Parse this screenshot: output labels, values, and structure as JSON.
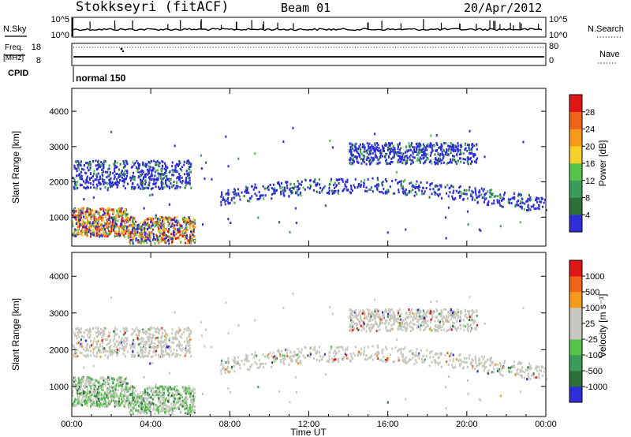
{
  "header": {
    "station": "Stokkseyri (fitACF)",
    "beam": "Beam 01",
    "date": "20/Apr/2012"
  },
  "side_labels": {
    "nsky": "N.Sky",
    "nsearch": "N.Search",
    "freq": "Freq.",
    "mhz": "[MHz]",
    "nave": "Nave",
    "cpid": "CPID",
    "mode": "normal 150"
  },
  "colors": {
    "power": [
      "#2e2ed8",
      "#2e6f3a",
      "#3b9b5a",
      "#57c24a",
      "#f5d12a",
      "#f59b1a",
      "#f06418",
      "#e01616"
    ],
    "velocity": [
      "#e01616",
      "#f06418",
      "#f59b1a",
      "#c8c8c0",
      "#c8c8c0",
      "#57c24a",
      "#3b9b5a",
      "#2e6f3a",
      "#2e2ed8"
    ]
  },
  "chart_data": [
    {
      "type": "line",
      "name": "N.Sky / N.Search strip",
      "yticks_left": [
        "10^5",
        "10^0"
      ],
      "yticks_right": [
        "10^5",
        "10^0"
      ]
    },
    {
      "type": "line",
      "name": "Freq / Nave strip",
      "yticks_left": [
        "18",
        "8"
      ],
      "yticks_right": [
        "80",
        "0"
      ]
    },
    {
      "type": "heatmap",
      "ylabel": "Slant Range [km]",
      "ylim": [
        180,
        4650
      ],
      "yticks": [
        "1000",
        "2000",
        "3000",
        "4000"
      ],
      "colorbar": {
        "label": "Power [dB]",
        "ticks": [
          "4",
          "8",
          "12",
          "16",
          "20",
          "24",
          "28"
        ],
        "range": [
          0,
          32
        ]
      },
      "bands": [
        {
          "t_start": 0.0,
          "t_end": 2.8,
          "range_low": 450,
          "range_high": 1250,
          "level": "high"
        },
        {
          "t_start": 2.8,
          "t_end": 6.2,
          "range_low": 250,
          "range_high": 1000,
          "level": "high"
        },
        {
          "t_start": 0.0,
          "t_end": 6.0,
          "range_low": 1800,
          "range_high": 2600,
          "level": "low"
        },
        {
          "t_start": 7.5,
          "t_end": 24.0,
          "range_low": 1300,
          "range_high": 2100,
          "level": "low"
        },
        {
          "t_start": 14.0,
          "t_end": 20.5,
          "range_low": 2500,
          "range_high": 3100,
          "level": "low"
        }
      ]
    },
    {
      "type": "heatmap",
      "ylabel": "Slant Range [km]",
      "xlabel": "Time UT",
      "xticks": [
        "00:00",
        "04:00",
        "08:00",
        "12:00",
        "16:00",
        "20:00",
        "00:00"
      ],
      "xlim": [
        0,
        24
      ],
      "ylim": [
        180,
        4650
      ],
      "yticks": [
        "1000",
        "2000",
        "3000",
        "4000"
      ],
      "colorbar": {
        "label": "Velocity [m s⁻¹]",
        "ticks": [
          "1000",
          "500",
          "100",
          "25",
          "-25",
          "-100",
          "-500",
          "-1000"
        ]
      }
    }
  ]
}
